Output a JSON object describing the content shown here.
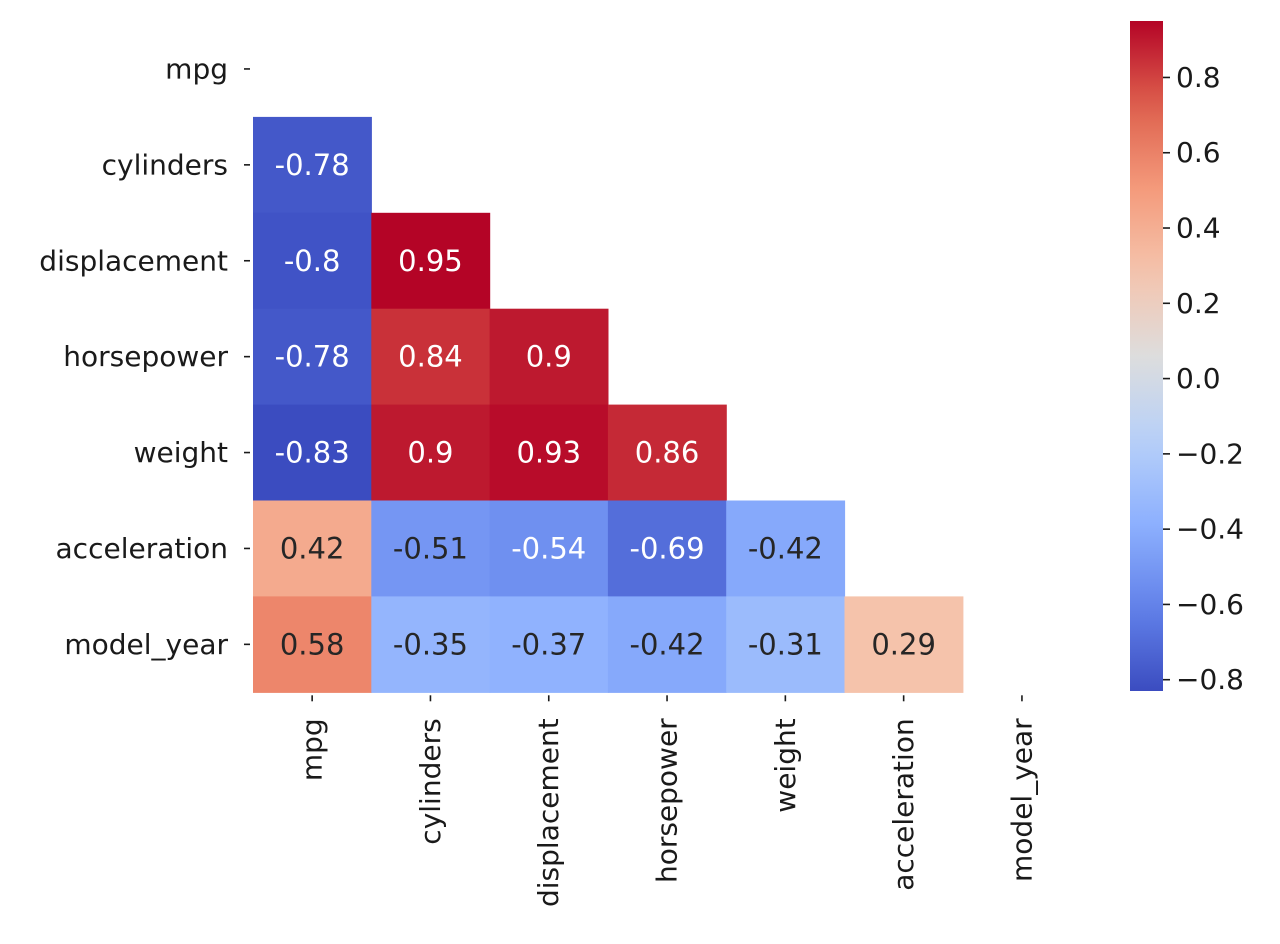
{
  "chart_data": {
    "type": "heatmap",
    "title": "",
    "xlabel": "",
    "ylabel": "",
    "rows": [
      "mpg",
      "cylinders",
      "displacement",
      "horsepower",
      "weight",
      "acceleration",
      "model_year"
    ],
    "columns": [
      "mpg",
      "cylinders",
      "displacement",
      "horsepower",
      "weight",
      "acceleration",
      "model_year"
    ],
    "mask": "upper triangle including diagonal",
    "values": [
      [
        null,
        null,
        null,
        null,
        null,
        null,
        null
      ],
      [
        -0.78,
        null,
        null,
        null,
        null,
        null,
        null
      ],
      [
        -0.8,
        0.95,
        null,
        null,
        null,
        null,
        null
      ],
      [
        -0.78,
        0.84,
        0.9,
        null,
        null,
        null,
        null
      ],
      [
        -0.83,
        0.9,
        0.93,
        0.86,
        null,
        null,
        null
      ],
      [
        0.42,
        -0.51,
        -0.54,
        -0.69,
        -0.42,
        null,
        null
      ],
      [
        0.58,
        -0.35,
        -0.37,
        -0.42,
        -0.31,
        0.29,
        null
      ]
    ],
    "annotations": [
      [
        "",
        "",
        "",
        "",
        "",
        "",
        ""
      ],
      [
        "-0.78",
        "",
        "",
        "",
        "",
        "",
        ""
      ],
      [
        "-0.8",
        "0.95",
        "",
        "",
        "",
        "",
        ""
      ],
      [
        "-0.78",
        "0.84",
        "0.9",
        "",
        "",
        "",
        ""
      ],
      [
        "-0.83",
        "0.9",
        "0.93",
        "0.86",
        "",
        "",
        ""
      ],
      [
        "0.42",
        "-0.51",
        "-0.54",
        "-0.69",
        "-0.42",
        "",
        ""
      ],
      [
        "0.58",
        "-0.35",
        "-0.37",
        "-0.42",
        "-0.31",
        "0.29",
        ""
      ]
    ],
    "colormap": "coolwarm",
    "vmin": -0.83,
    "vmax": 0.95,
    "colorbar": {
      "ticks": [
        0.8,
        0.6,
        0.4,
        0.2,
        0.0,
        -0.2,
        -0.4,
        -0.6,
        -0.8
      ],
      "tick_labels": [
        "0.8",
        "0.6",
        "0.4",
        "0.2",
        "0.0",
        "−0.2",
        "−0.4",
        "−0.6",
        "−0.8"
      ],
      "placement": "right"
    },
    "grid": false,
    "colors": {
      "cold": "#3b4cc0",
      "neutral": "#dddddd",
      "hot": "#b40426",
      "tick": "#1a1a1a"
    }
  }
}
